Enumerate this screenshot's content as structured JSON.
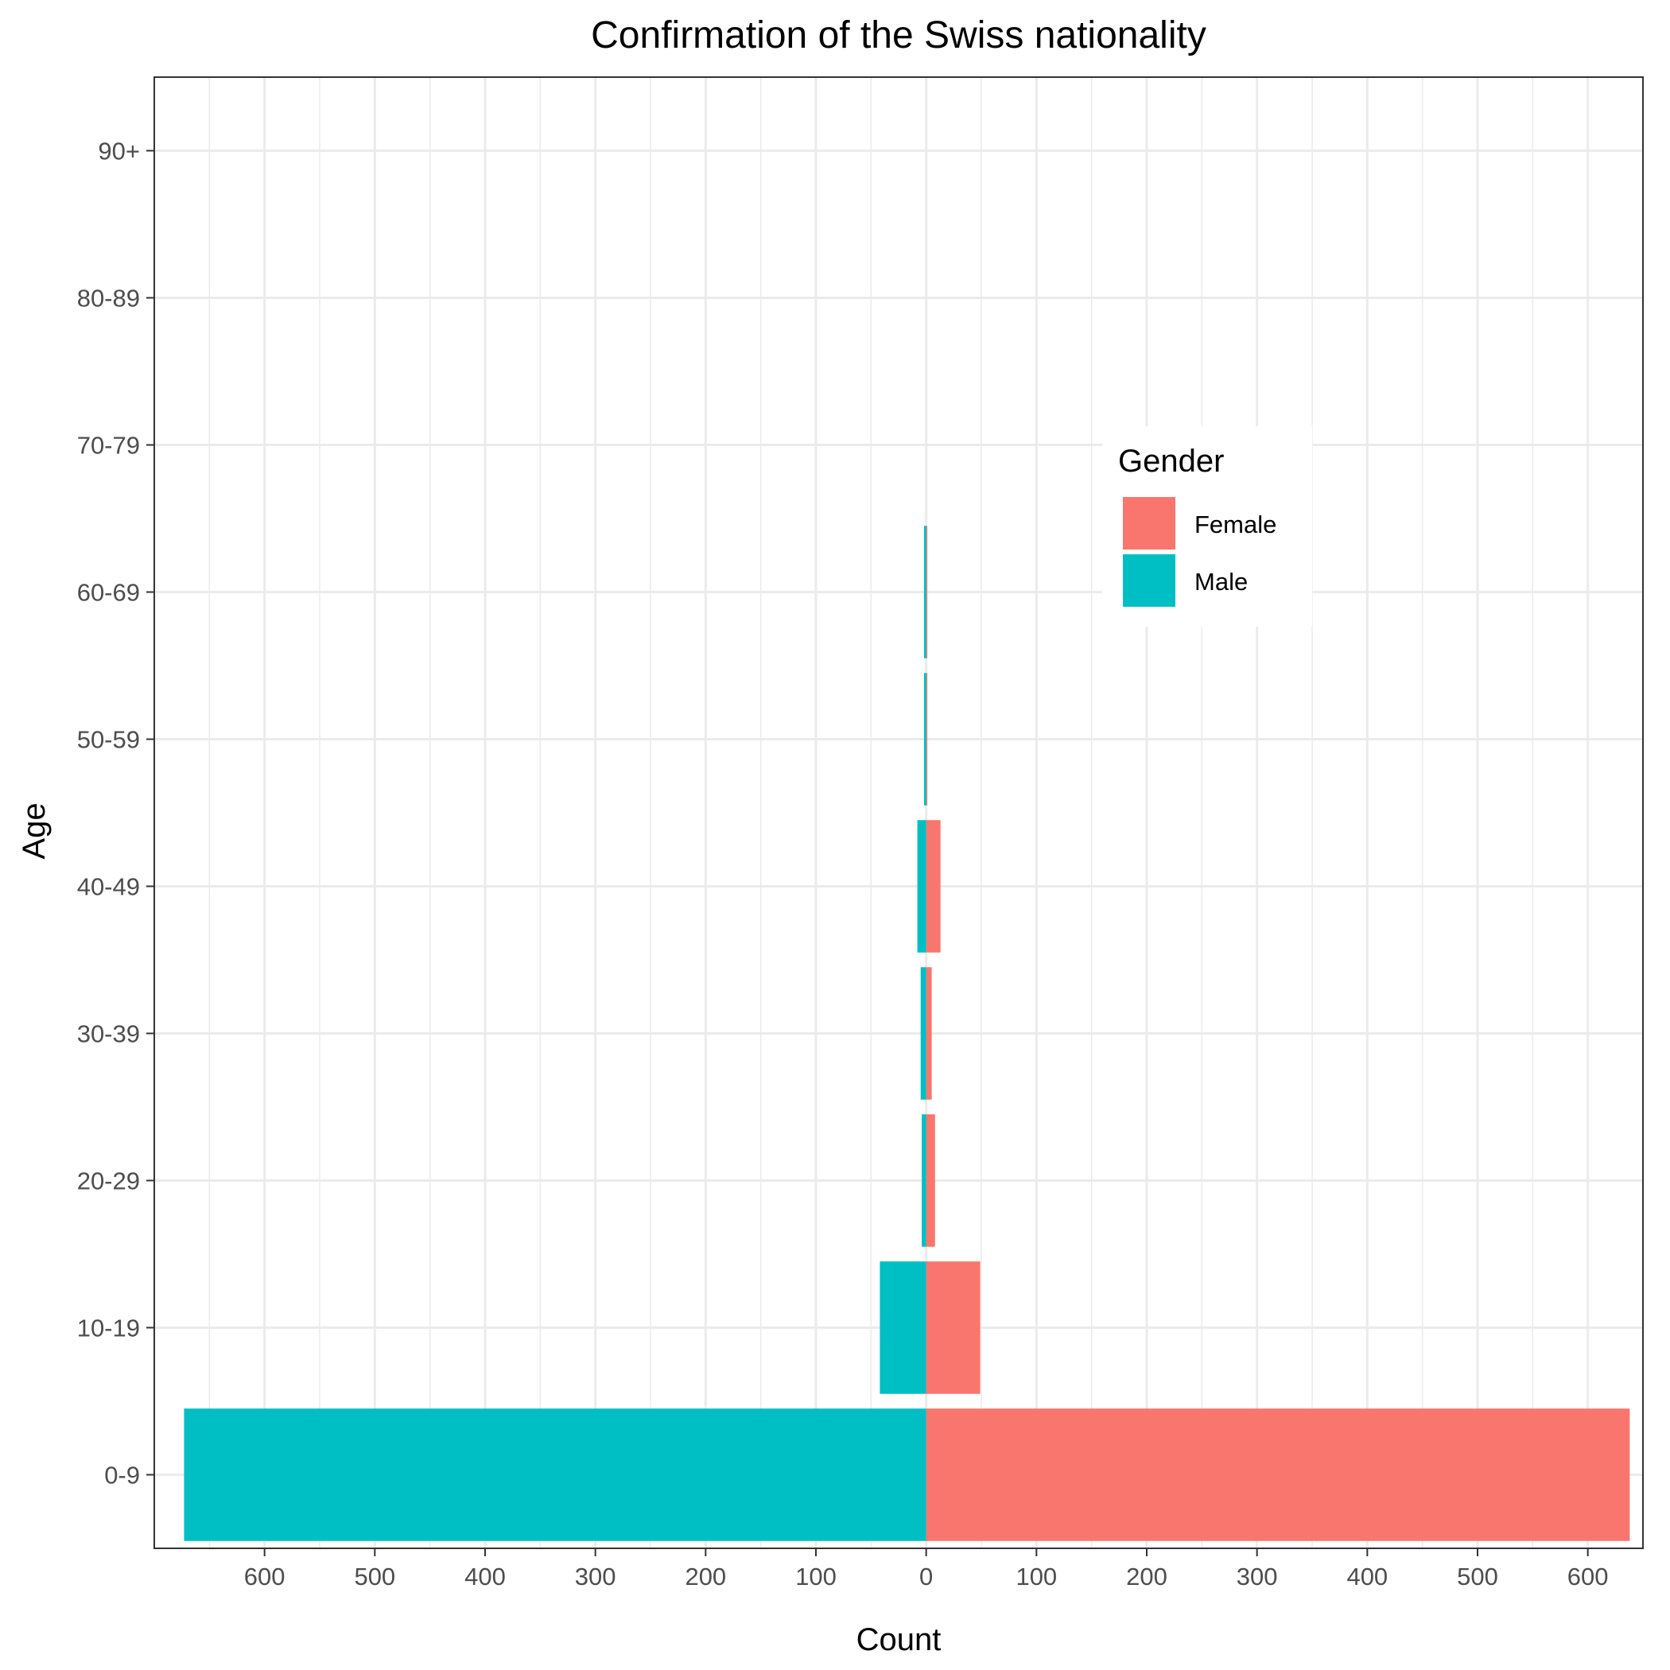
{
  "chart_data": {
    "type": "bar",
    "title": "Confirmation of the Swiss nationality",
    "xlabel": "Count",
    "ylabel": "Age",
    "xlim": [
      -700,
      650
    ],
    "x_ticks": [
      -600,
      -500,
      -400,
      -300,
      -200,
      -100,
      0,
      100,
      200,
      300,
      400,
      500,
      600
    ],
    "x_tick_labels": [
      "600",
      "500",
      "400",
      "300",
      "200",
      "100",
      "0",
      "100",
      "200",
      "300",
      "400",
      "500",
      "600"
    ],
    "categories": [
      "0-9",
      "10-19",
      "20-29",
      "30-39",
      "40-49",
      "50-59",
      "60-69",
      "70-79",
      "80-89",
      "90+"
    ],
    "series": [
      {
        "name": "Female",
        "color": "#F8766D",
        "values": [
          638,
          49,
          8,
          5,
          13,
          1,
          1,
          0,
          0,
          0
        ]
      },
      {
        "name": "Male",
        "color": "#00BFC4",
        "values": [
          673,
          42,
          4,
          5,
          8,
          2,
          2,
          0,
          0,
          0
        ]
      }
    ],
    "legend": {
      "title": "Gender",
      "position": "inside-right"
    },
    "grid": true
  }
}
